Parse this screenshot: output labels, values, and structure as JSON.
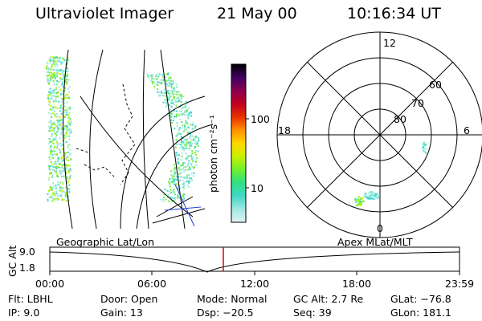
{
  "header": {
    "title": "Ultraviolet Imager",
    "date": "21 May 00",
    "time": "10:16:34 UT"
  },
  "colorbar": {
    "label": "photon cm⁻²s⁻¹",
    "ticks": [
      "100",
      "10"
    ],
    "colors": [
      "#e0f4f4",
      "#a0e8e0",
      "#40d8c8",
      "#30e080",
      "#70ef30",
      "#c8f000",
      "#ffd800",
      "#ff9000",
      "#e83000",
      "#c00020",
      "#8a0050",
      "#400060",
      "#000000"
    ]
  },
  "polar": {
    "mlt_labels": {
      "top": "12",
      "left": "18",
      "right": "6",
      "bottom": "0"
    },
    "lat_labels": [
      "60",
      "70",
      "80"
    ]
  },
  "timeline": {
    "left_label": "Geographic Lat/Lon",
    "right_label": "Apex MLat/MLT",
    "axis_label": "GC Alt",
    "y_top": "9.0",
    "y_bottom": "1.8",
    "ticks": [
      "00:00",
      "06:00",
      "12:00",
      "18:00",
      "23:59"
    ],
    "marker_color": "#e00000"
  },
  "info": {
    "flt": "Flt: LBHL",
    "ip": "IP:  9.0",
    "door": "Door: Open",
    "gain": "Gain: 13",
    "mode": "Mode: Normal",
    "dsp": "Dsp:  −20.5",
    "gc_alt": "GC Alt: 2.7 Re",
    "seq": "Seq: 39",
    "glat": "GLat: −76.8",
    "glon": "GLon: 181.1"
  }
}
